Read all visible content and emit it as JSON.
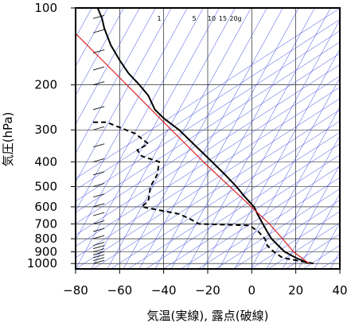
{
  "chart_data": {
    "type": "line",
    "title": "",
    "xlabel": "気温(実線), 露点(破線)",
    "ylabel": "気圧(hPa)",
    "xlim": [
      -80,
      40
    ],
    "ylim": [
      1050,
      100
    ],
    "yscale": "log",
    "x_ticks": [
      "−80",
      "−60",
      "−40",
      "−20",
      "0",
      "20",
      "40"
    ],
    "y_ticks": [
      "100",
      "200",
      "300",
      "400",
      "500",
      "600",
      "700",
      "800",
      "900",
      "1000"
    ],
    "mixing_ratio_labels": [
      "1",
      "5",
      "10",
      "15",
      "20g"
    ],
    "series": [
      {
        "style": "solid",
        "color": "#000000",
        "points": [
          [
            26,
            1000
          ],
          [
            20,
            950
          ],
          [
            15,
            900
          ],
          [
            12,
            850
          ],
          [
            9,
            800
          ],
          [
            7,
            750
          ],
          [
            5,
            700
          ],
          [
            3,
            650
          ],
          [
            1,
            600
          ],
          [
            -3,
            550
          ],
          [
            -7,
            500
          ],
          [
            -12,
            450
          ],
          [
            -18,
            400
          ],
          [
            -25,
            350
          ],
          [
            -33,
            300
          ],
          [
            -40,
            270
          ],
          [
            -44,
            250
          ],
          [
            -47,
            220
          ],
          [
            -51,
            200
          ],
          [
            -56,
            180
          ],
          [
            -60,
            160
          ],
          [
            -64,
            140
          ],
          [
            -67,
            120
          ],
          [
            -68,
            110
          ],
          [
            -70,
            100
          ]
        ]
      },
      {
        "style": "dashed",
        "color": "#000000",
        "points": [
          [
            28,
            1000
          ],
          [
            14,
            950
          ],
          [
            10,
            900
          ],
          [
            7,
            850
          ],
          [
            6,
            800
          ],
          [
            3,
            750
          ],
          [
            -1,
            710
          ],
          [
            -24,
            700
          ],
          [
            -28,
            670
          ],
          [
            -33,
            640
          ],
          [
            -50,
            600
          ],
          [
            -47,
            570
          ],
          [
            -46,
            500
          ],
          [
            -43,
            450
          ],
          [
            -42,
            400
          ],
          [
            -50,
            380
          ],
          [
            -52,
            360
          ],
          [
            -47,
            340
          ],
          [
            -53,
            310
          ],
          [
            -66,
            280
          ],
          [
            -72,
            280
          ]
        ]
      },
      {
        "style": "solid",
        "color": "#dd2222",
        "points": [
          [
            26,
            1000
          ],
          [
            19,
            900
          ],
          [
            14,
            800
          ],
          [
            8,
            700
          ],
          [
            -2,
            580
          ],
          [
            -22,
            400
          ],
          [
            -40,
            280
          ],
          [
            -62,
            180
          ],
          [
            -80,
            126
          ]
        ]
      }
    ]
  }
}
